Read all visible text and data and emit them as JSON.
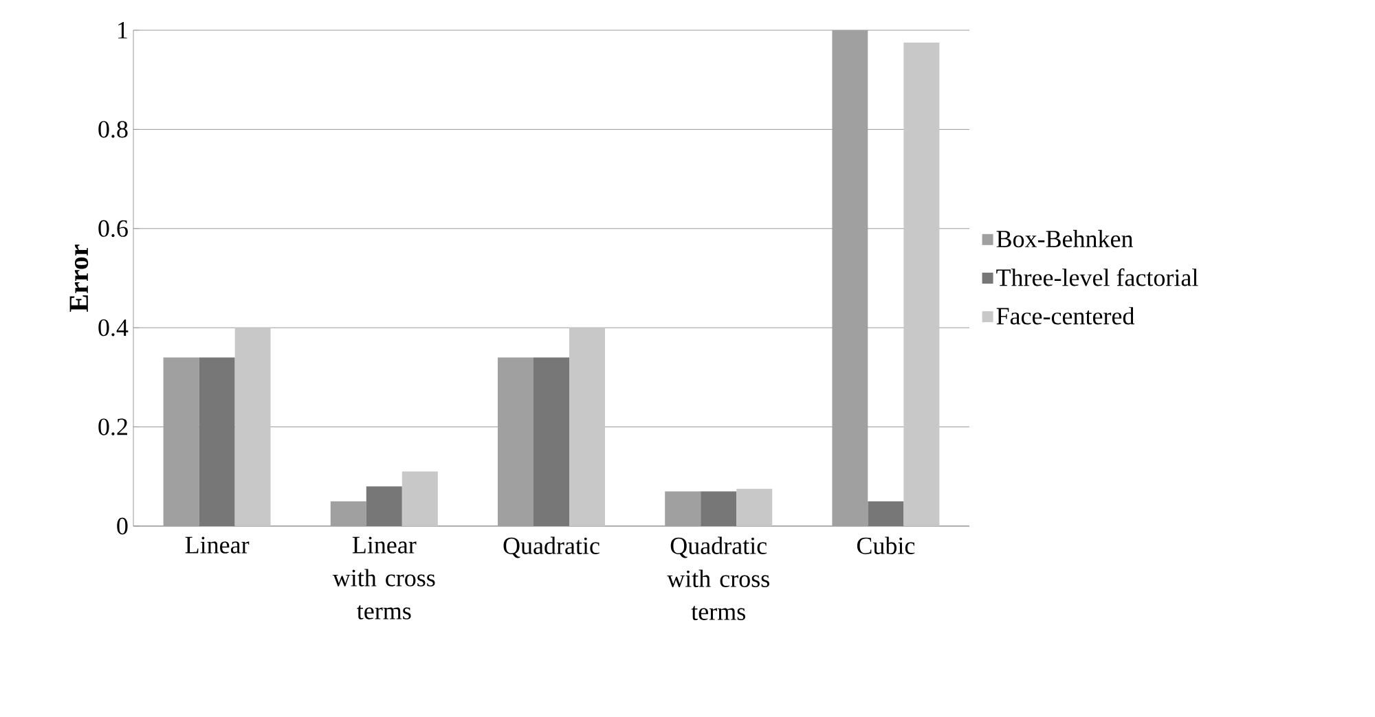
{
  "chart_data": {
    "type": "bar",
    "ylabel": "Error",
    "categories": [
      "Linear",
      "Linear with cross terms",
      "Quadratic",
      "Quadratic with cross terms",
      "Cubic"
    ],
    "series": [
      {
        "name": "Box-Behnken",
        "color": "#a0a0a0",
        "values": [
          0.34,
          0.05,
          0.34,
          0.07,
          1.0
        ]
      },
      {
        "name": "Three-level factorial",
        "color": "#777777",
        "values": [
          0.34,
          0.08,
          0.34,
          0.07,
          0.05
        ]
      },
      {
        "name": "Face-centered",
        "color": "#c8c8c8",
        "values": [
          0.4,
          0.11,
          0.4,
          0.075,
          0.975
        ]
      }
    ],
    "ylim": [
      0,
      1
    ],
    "yticks": [
      0,
      0.2,
      0.4,
      0.6,
      0.8,
      1
    ],
    "grid": "y",
    "legend": "right"
  }
}
